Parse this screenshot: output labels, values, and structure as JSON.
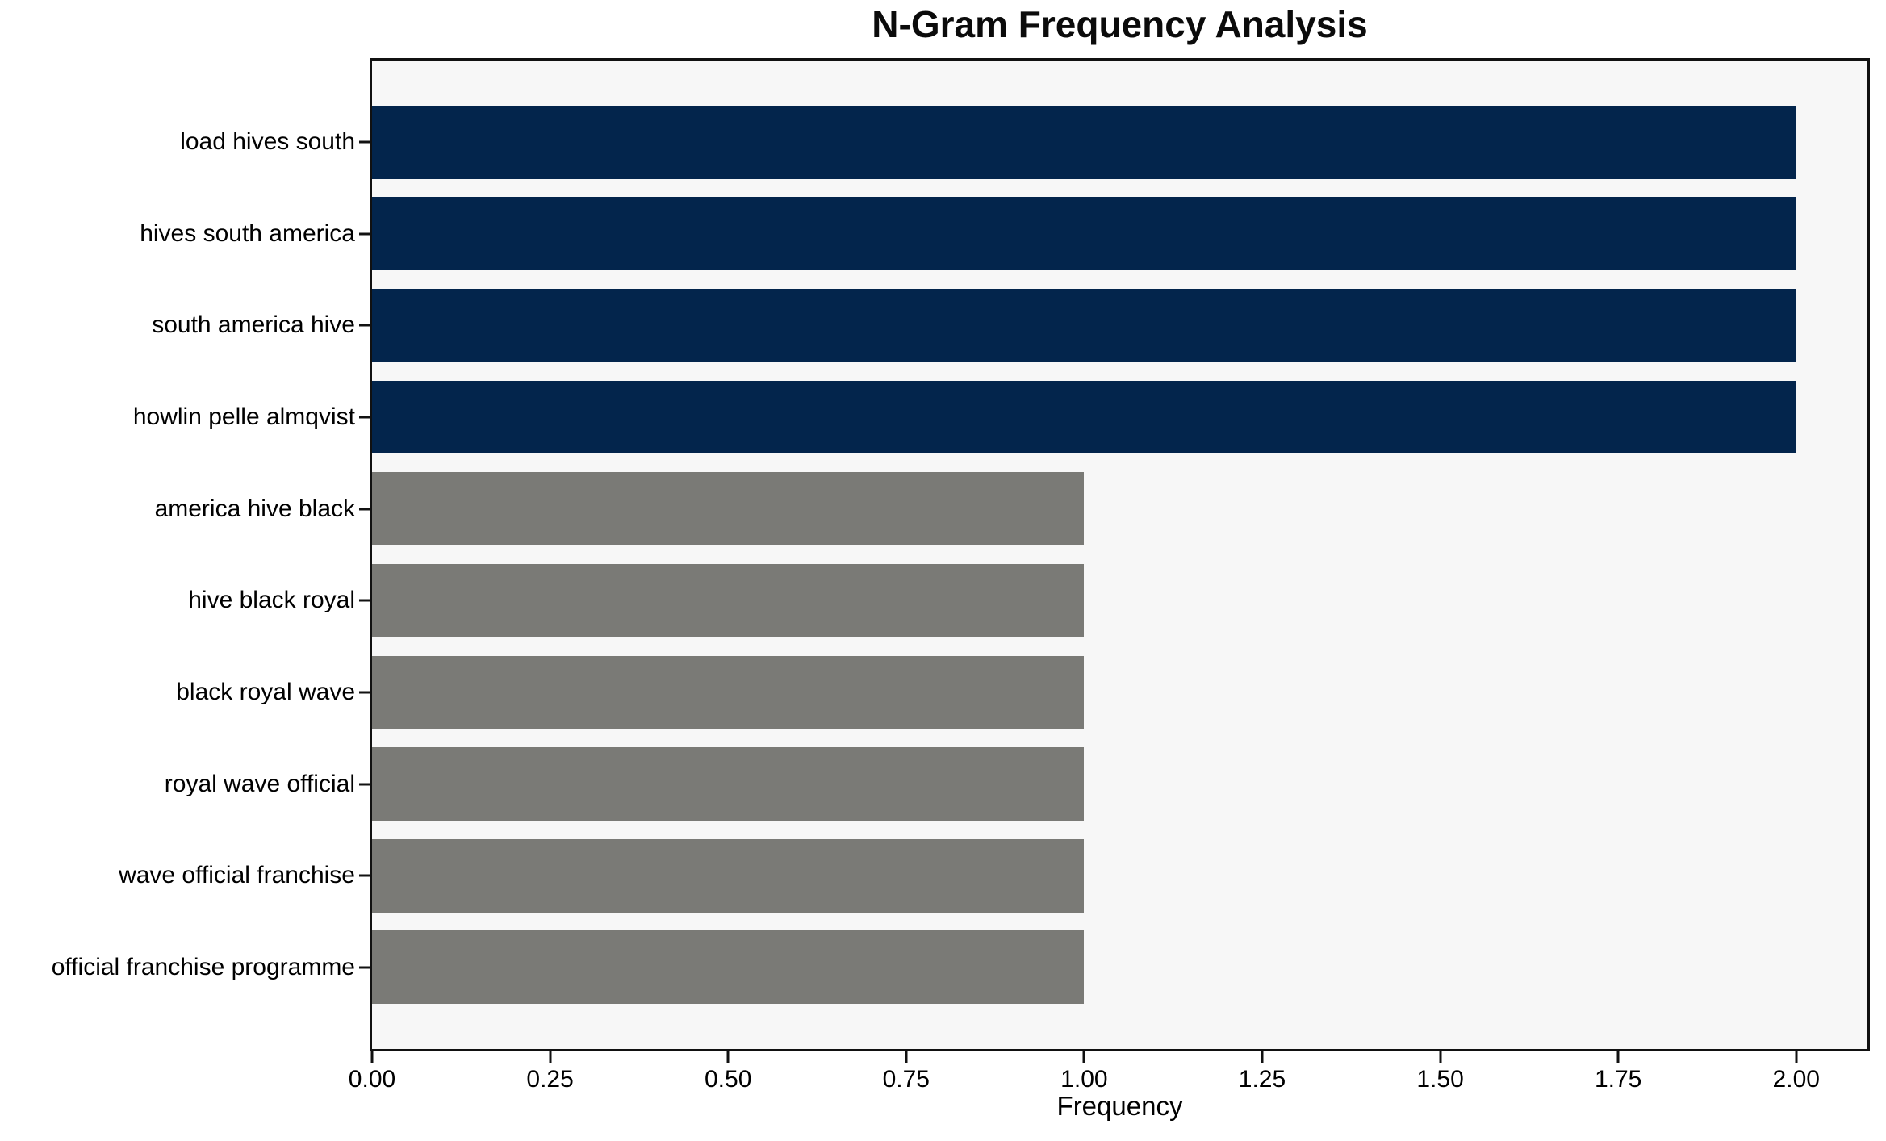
{
  "chart_data": {
    "type": "bar",
    "orientation": "horizontal",
    "title": "N-Gram Frequency Analysis",
    "xlabel": "Frequency",
    "ylabel": "",
    "categories": [
      "load hives south",
      "hives south america",
      "south america hive",
      "howlin pelle almqvist",
      "america hive black",
      "hive black royal",
      "black royal wave",
      "royal wave official",
      "wave official franchise",
      "official franchise programme"
    ],
    "values": [
      2,
      2,
      2,
      2,
      1,
      1,
      1,
      1,
      1,
      1
    ],
    "bar_colors": [
      "#03254c",
      "#03254c",
      "#03254c",
      "#03254c",
      "#7a7a76",
      "#7a7a76",
      "#7a7a76",
      "#7a7a76",
      "#7a7a76",
      "#7a7a76"
    ],
    "xlim": [
      0,
      2.1
    ],
    "xticks": {
      "values": [
        0,
        0.25,
        0.5,
        0.75,
        1.0,
        1.25,
        1.5,
        1.75,
        2.0
      ],
      "labels": [
        "0.00",
        "0.25",
        "0.50",
        "0.75",
        "1.00",
        "1.25",
        "1.50",
        "1.75",
        "2.00"
      ]
    },
    "colors": {
      "highlight": "#03254c",
      "muted": "#7a7a76",
      "plot_background": "#f7f7f7",
      "spine": "#111111",
      "text": "#000000"
    },
    "grid": false,
    "legend_position": "none"
  }
}
